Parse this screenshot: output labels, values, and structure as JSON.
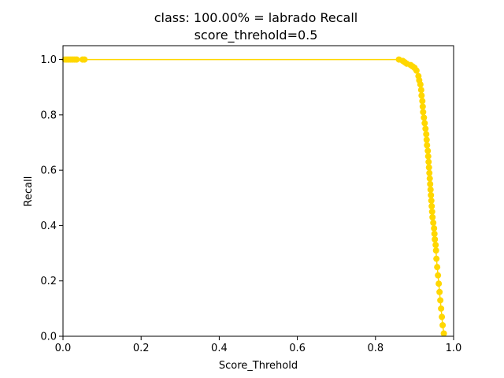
{
  "chart_data": {
    "type": "line",
    "title": "class: 100.00% = labrado Recall",
    "subtitle": "score_threhold=0.5",
    "xlabel": "Score_Threhold",
    "ylabel": "Recall",
    "xlim": [
      0.0,
      1.0
    ],
    "ylim": [
      0.0,
      1.05
    ],
    "xticks": [
      "0.0",
      "0.2",
      "0.4",
      "0.6",
      "0.8",
      "1.0"
    ],
    "yticks": [
      "0.0",
      "0.2",
      "0.4",
      "0.6",
      "0.8",
      "1.0"
    ],
    "grid": false,
    "legend": "none",
    "series": [
      {
        "color": "#FFD700",
        "marker": "circle",
        "x": [
          0.005,
          0.01,
          0.015,
          0.02,
          0.025,
          0.03,
          0.035,
          0.05,
          0.055,
          0.86,
          0.87,
          0.875,
          0.88,
          0.89,
          0.895,
          0.9,
          0.905,
          0.91,
          0.912,
          0.915,
          0.917,
          0.918,
          0.92,
          0.921,
          0.922,
          0.924,
          0.926,
          0.928,
          0.93,
          0.931,
          0.932,
          0.934,
          0.935,
          0.936,
          0.937,
          0.938,
          0.939,
          0.94,
          0.941,
          0.942,
          0.943,
          0.944,
          0.945,
          0.946,
          0.948,
          0.95,
          0.951,
          0.952,
          0.954,
          0.955,
          0.956,
          0.958,
          0.96,
          0.962,
          0.964,
          0.966,
          0.968,
          0.97,
          0.972,
          0.975
        ],
        "y": [
          1.0,
          1.0,
          1.0,
          1.0,
          1.0,
          1.0,
          1.0,
          1.0,
          1.0,
          1.0,
          0.995,
          0.99,
          0.985,
          0.98,
          0.975,
          0.97,
          0.96,
          0.94,
          0.925,
          0.91,
          0.89,
          0.87,
          0.85,
          0.83,
          0.81,
          0.79,
          0.77,
          0.75,
          0.73,
          0.71,
          0.69,
          0.67,
          0.65,
          0.63,
          0.61,
          0.59,
          0.57,
          0.55,
          0.53,
          0.51,
          0.49,
          0.47,
          0.45,
          0.43,
          0.41,
          0.39,
          0.37,
          0.35,
          0.33,
          0.31,
          0.28,
          0.25,
          0.22,
          0.19,
          0.16,
          0.13,
          0.1,
          0.07,
          0.04,
          0.01
        ]
      }
    ]
  }
}
